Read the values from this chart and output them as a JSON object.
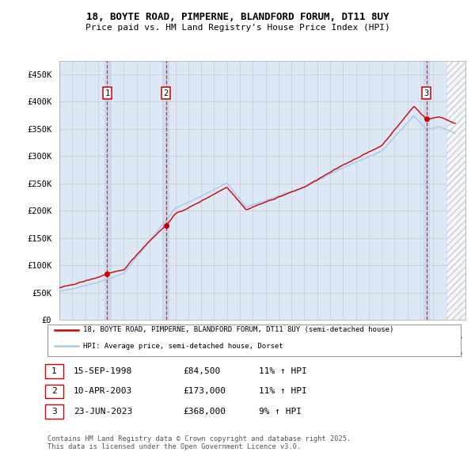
{
  "title_line1": "18, BOYTE ROAD, PIMPERNE, BLANDFORD FORUM, DT11 8UY",
  "title_line2": "Price paid vs. HM Land Registry's House Price Index (HPI)",
  "ylabel_ticks": [
    "£0",
    "£50K",
    "£100K",
    "£150K",
    "£200K",
    "£250K",
    "£300K",
    "£350K",
    "£400K",
    "£450K"
  ],
  "ylabel_values": [
    0,
    50000,
    100000,
    150000,
    200000,
    250000,
    300000,
    350000,
    400000,
    450000
  ],
  "ylim": [
    0,
    475000
  ],
  "xlim_start": 1995.0,
  "xlim_end": 2026.5,
  "background_color": "#ffffff",
  "grid_color": "#cccccc",
  "plot_bg_color": "#dce8f5",
  "hpi_color": "#a8c8e8",
  "price_color": "#cc0000",
  "sale1_date": "15-SEP-1998",
  "sale1_price": 84500,
  "sale1_x": 1998.71,
  "sale1_hpi_pct": "11%",
  "sale2_date": "10-APR-2003",
  "sale2_price": 173000,
  "sale2_x": 2003.27,
  "sale2_hpi_pct": "11%",
  "sale3_date": "23-JUN-2023",
  "sale3_price": 368000,
  "sale3_x": 2023.47,
  "sale3_hpi_pct": "9%",
  "legend_label_price": "18, BOYTE ROAD, PIMPERNE, BLANDFORD FORUM, DT11 8UY (semi-detached house)",
  "legend_label_hpi": "HPI: Average price, semi-detached house, Dorset",
  "footer": "Contains HM Land Registry data © Crown copyright and database right 2025.\nThis data is licensed under the Open Government Licence v3.0.",
  "hatching_start": 2025.0,
  "hatching_end": 2026.5
}
